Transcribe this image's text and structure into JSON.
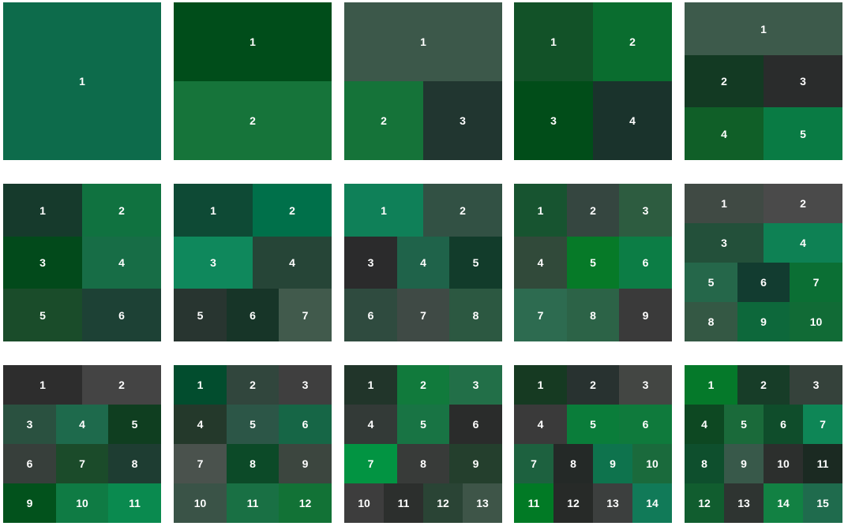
{
  "panels": [
    {
      "rows": [
        [
          "1"
        ]
      ],
      "colors": [
        [
          "#0d6b4b"
        ]
      ]
    },
    {
      "rows": [
        [
          "1"
        ],
        [
          "2"
        ]
      ],
      "colors": [
        [
          "#004d1a"
        ],
        [
          "#16743a"
        ]
      ]
    },
    {
      "rows": [
        [
          "1"
        ],
        [
          "2",
          "3"
        ]
      ],
      "colors": [
        [
          "#3c584a"
        ],
        [
          "#157339",
          "#213630"
        ]
      ]
    },
    {
      "rows": [
        [
          "1",
          "2"
        ],
        [
          "3",
          "4"
        ]
      ],
      "colors": [
        [
          "#125228",
          "#0a6d2f"
        ],
        [
          "#014d19",
          "#1a332c"
        ]
      ]
    },
    {
      "rows": [
        [
          "1"
        ],
        [
          "2",
          "3"
        ],
        [
          "4",
          "5"
        ]
      ],
      "colors": [
        [
          "#3d5a4b"
        ],
        [
          "#133a23",
          "#2a2c2c"
        ],
        [
          "#105f28",
          "#097b44"
        ]
      ]
    },
    {
      "rows": [
        [
          "1",
          "2"
        ],
        [
          "3",
          "4"
        ],
        [
          "5",
          "6"
        ]
      ],
      "colors": [
        [
          "#163a2c",
          "#107240"
        ],
        [
          "#024a1b",
          "#176d46"
        ],
        [
          "#1a4c2a",
          "#1d4135"
        ]
      ]
    },
    {
      "rows": [
        [
          "1",
          "2"
        ],
        [
          "3",
          "4"
        ],
        [
          "5",
          "6",
          "7"
        ]
      ],
      "colors": [
        [
          "#0e4a35",
          "#00704a"
        ],
        [
          "#0f885c",
          "#264537"
        ],
        [
          "#283530",
          "#173528",
          "#415a4c"
        ]
      ]
    },
    {
      "rows": [
        [
          "1",
          "2"
        ],
        [
          "3",
          "4",
          "5"
        ],
        [
          "6",
          "7",
          "8"
        ]
      ],
      "colors": [
        [
          "#0f8058",
          "#325144"
        ],
        [
          "#2b2b2c",
          "#1f634a",
          "#123c2b"
        ],
        [
          "#2f4b3f",
          "#3f4a45",
          "#2c5841"
        ]
      ]
    },
    {
      "rows": [
        [
          "1",
          "2",
          "3"
        ],
        [
          "4",
          "5",
          "6"
        ],
        [
          "7",
          "8",
          "9"
        ]
      ],
      "colors": [
        [
          "#175430",
          "#354640",
          "#2d5c40"
        ],
        [
          "#314a3a",
          "#067a28",
          "#0c7d45"
        ],
        [
          "#2d6b50",
          "#2c6347",
          "#3a3a3a"
        ]
      ]
    },
    {
      "rows": [
        [
          "1",
          "2"
        ],
        [
          "3",
          "4"
        ],
        [
          "5",
          "6",
          "7"
        ],
        [
          "8",
          "9",
          "10"
        ]
      ],
      "colors": [
        [
          "#404a44",
          "#4a4a4a"
        ],
        [
          "#23503a",
          "#0e8154"
        ],
        [
          "#25674a",
          "#123c30",
          "#0b6f34"
        ],
        [
          "#345844",
          "#0d683b",
          "#116b36"
        ]
      ]
    },
    {
      "rows": [
        [
          "1",
          "2"
        ],
        [
          "3",
          "4",
          "5"
        ],
        [
          "6",
          "7",
          "8"
        ],
        [
          "9",
          "10",
          "11"
        ]
      ],
      "colors": [
        [
          "#2d2d2d",
          "#444444"
        ],
        [
          "#2a5140",
          "#1e6a4c",
          "#0f3e20"
        ],
        [
          "#373f3b",
          "#1b4b2a",
          "#1e3d32"
        ],
        [
          "#02521c",
          "#0f7b44",
          "#0a8a4f"
        ]
      ]
    },
    {
      "rows": [
        [
          "1",
          "2",
          "3"
        ],
        [
          "4",
          "5",
          "6"
        ],
        [
          "7",
          "8",
          "9"
        ],
        [
          "10",
          "11",
          "12"
        ]
      ],
      "colors": [
        [
          "#024d2e",
          "#31463d",
          "#3f3f3f"
        ],
        [
          "#24392b",
          "#2c5647",
          "#166646"
        ],
        [
          "#4a524d",
          "#0c4a28",
          "#3c463f"
        ],
        [
          "#3a5347",
          "#197044",
          "#127236"
        ]
      ]
    },
    {
      "rows": [
        [
          "1",
          "2",
          "3"
        ],
        [
          "4",
          "5",
          "6"
        ],
        [
          "7",
          "8",
          "9"
        ],
        [
          "10",
          "11",
          "12",
          "13"
        ]
      ],
      "colors": [
        [
          "#21352a",
          "#117a3c",
          "#226f48"
        ],
        [
          "#333a37",
          "#187444",
          "#2a2c2b"
        ],
        [
          "#029442",
          "#383b39",
          "#243f2d"
        ],
        [
          "#3d3d3d",
          "#2c2f2d",
          "#2a4435",
          "#3e5548"
        ]
      ]
    },
    {
      "rows": [
        [
          "1",
          "2",
          "3"
        ],
        [
          "4",
          "5",
          "6"
        ],
        [
          "7",
          "8",
          "9",
          "10"
        ],
        [
          "11",
          "12",
          "13",
          "14"
        ]
      ],
      "colors": [
        [
          "#163a22",
          "#283230",
          "#434643"
        ],
        [
          "#3a3a3a",
          "#0a7d3a",
          "#0f7a3c"
        ],
        [
          "#1d613f",
          "#242927",
          "#0e734d",
          "#1a6a3c"
        ],
        [
          "#017a25",
          "#272a28",
          "#3c3f3e",
          "#117a58"
        ]
      ]
    },
    {
      "rows": [
        [
          "1",
          "2",
          "3"
        ],
        [
          "4",
          "5",
          "6",
          "7"
        ],
        [
          "8",
          "9",
          "10",
          "11"
        ],
        [
          "12",
          "13",
          "14",
          "15"
        ]
      ],
      "colors": [
        [
          "#05792a",
          "#173d28",
          "#35423b"
        ],
        [
          "#0d4822",
          "#1a6a3a",
          "#0f4d2b",
          "#0e8656"
        ],
        [
          "#0e4f2d",
          "#38594a",
          "#2c2f2d",
          "#1b2a22"
        ],
        [
          "#115d2f",
          "#2e3431",
          "#128143",
          "#1f6b4d"
        ]
      ]
    }
  ]
}
